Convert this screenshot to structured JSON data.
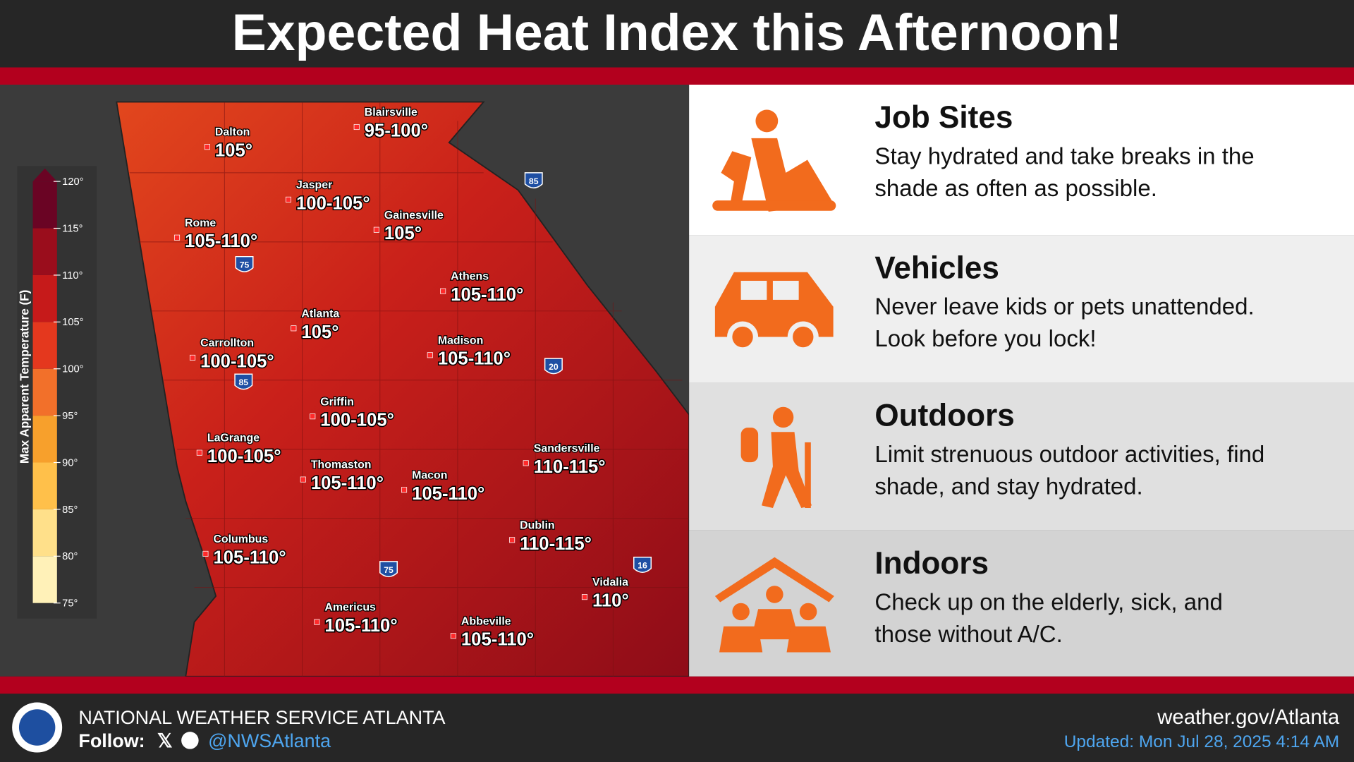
{
  "header": {
    "title": "Expected Heat Index this Afternoon!"
  },
  "map": {
    "legend": {
      "title": "Max Apparent Temperature (F)",
      "ticks": [
        {
          "value": 75,
          "label": "75°"
        },
        {
          "value": 80,
          "label": "80°"
        },
        {
          "value": 85,
          "label": "85°"
        },
        {
          "value": 90,
          "label": "90°"
        },
        {
          "value": 95,
          "label": "95°"
        },
        {
          "value": 100,
          "label": "100°"
        },
        {
          "value": 105,
          "label": "105°"
        },
        {
          "value": 110,
          "label": "110°"
        },
        {
          "value": 115,
          "label": "115°"
        },
        {
          "value": 120,
          "label": "120°"
        }
      ],
      "colors": [
        "#fff1b8",
        "#ffe08a",
        "#ffc04a",
        "#f7a02c",
        "#f2702a",
        "#e4381e",
        "#c61a1a",
        "#9a0d1c",
        "#6a0424"
      ]
    },
    "cities": [
      {
        "name": "Dalton",
        "value": "105°"
      },
      {
        "name": "Blairsville",
        "value": "95-100°"
      },
      {
        "name": "Jasper",
        "value": "100-105°"
      },
      {
        "name": "Gainesville",
        "value": "105°"
      },
      {
        "name": "Rome",
        "value": "105-110°"
      },
      {
        "name": "Athens",
        "value": "105-110°"
      },
      {
        "name": "Atlanta",
        "value": "105°"
      },
      {
        "name": "Carrollton",
        "value": "100-105°"
      },
      {
        "name": "Madison",
        "value": "105-110°"
      },
      {
        "name": "Griffin",
        "value": "100-105°"
      },
      {
        "name": "LaGrange",
        "value": "100-105°"
      },
      {
        "name": "Sandersville",
        "value": "110-115°"
      },
      {
        "name": "Thomaston",
        "value": "105-110°"
      },
      {
        "name": "Macon",
        "value": "105-110°"
      },
      {
        "name": "Dublin",
        "value": "110-115°"
      },
      {
        "name": "Columbus",
        "value": "105-110°"
      },
      {
        "name": "Vidalia",
        "value": "110°"
      },
      {
        "name": "Americus",
        "value": "105-110°"
      },
      {
        "name": "Abbeville",
        "value": "105-110°"
      }
    ],
    "interstates": [
      "85",
      "75",
      "85",
      "20",
      "75",
      "16"
    ]
  },
  "panels": [
    {
      "heading": "Job Sites",
      "text": [
        "Stay hydrated and take breaks in the",
        "shade as often as possible."
      ]
    },
    {
      "heading": "Vehicles",
      "text": [
        "Never leave kids or pets unattended.",
        "Look before you lock!"
      ]
    },
    {
      "heading": "Outdoors",
      "text": [
        "Limit strenuous outdoor activities, find",
        "shade, and stay hydrated."
      ]
    },
    {
      "heading": "Indoors",
      "text": [
        "Check up on the elderly, sick, and",
        "those without A/C."
      ]
    }
  ],
  "footer": {
    "office": "NATIONAL WEATHER SERVICE ATLANTA",
    "follow": "Follow:",
    "handle": "@NWSAtlanta",
    "website": "weather.gov/Atlanta",
    "updated": "Updated: Mon Jul 28, 2025 4:14 AM"
  }
}
